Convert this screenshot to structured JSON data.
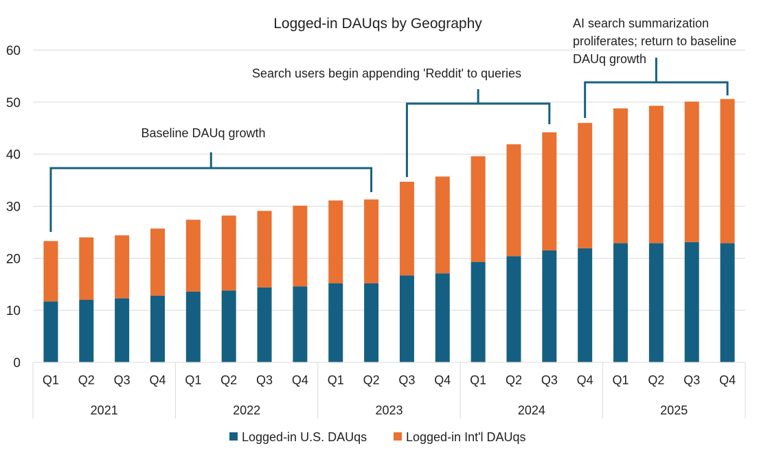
{
  "chart_data": {
    "type": "bar",
    "stacked": true,
    "title": "Logged-in DAUqs by Geography",
    "xlabel": "",
    "ylabel": "",
    "ylim": [
      0,
      60
    ],
    "yticks": [
      0,
      10,
      20,
      30,
      40,
      50,
      60
    ],
    "grid": true,
    "legend_position": "bottom",
    "years": [
      "2021",
      "2022",
      "2023",
      "2024",
      "2025"
    ],
    "quarters": [
      "Q1",
      "Q2",
      "Q3",
      "Q4"
    ],
    "categories": [
      "2021 Q1",
      "2021 Q2",
      "2021 Q3",
      "2021 Q4",
      "2022 Q1",
      "2022 Q2",
      "2022 Q3",
      "2022 Q4",
      "2023 Q1",
      "2023 Q2",
      "2023 Q3",
      "2023 Q4",
      "2024 Q1",
      "2024 Q2",
      "2024 Q3",
      "2024 Q4",
      "2025 Q1",
      "2025 Q2",
      "2025 Q3",
      "2025 Q4"
    ],
    "series": [
      {
        "name": "Logged-in U.S. DAUqs",
        "color": "#156082",
        "values": [
          11.7,
          12.0,
          12.3,
          12.8,
          13.6,
          13.8,
          14.4,
          14.6,
          15.2,
          15.2,
          16.7,
          17.1,
          19.3,
          20.4,
          21.5,
          21.9,
          22.9,
          22.9,
          23.1,
          22.9
        ]
      },
      {
        "name": "Logged-in Int'l DAUqs",
        "color": "#E97132",
        "values": [
          11.6,
          12.0,
          12.1,
          12.9,
          13.8,
          14.4,
          14.7,
          15.5,
          15.9,
          16.1,
          18.0,
          18.6,
          20.3,
          21.5,
          22.7,
          24.1,
          25.9,
          26.4,
          27.0,
          27.7
        ]
      }
    ],
    "annotations": [
      {
        "text_lines": [
          "Baseline DAUq growth"
        ],
        "from": 0,
        "to": 9
      },
      {
        "text_lines": [
          "Search users begin appending 'Reddit' to queries"
        ],
        "from": 10,
        "to": 14
      },
      {
        "text_lines": [
          "AI search summarization",
          "proliferates; return to baseline",
          "DAUq growth"
        ],
        "from": 15,
        "to": 19
      }
    ]
  }
}
